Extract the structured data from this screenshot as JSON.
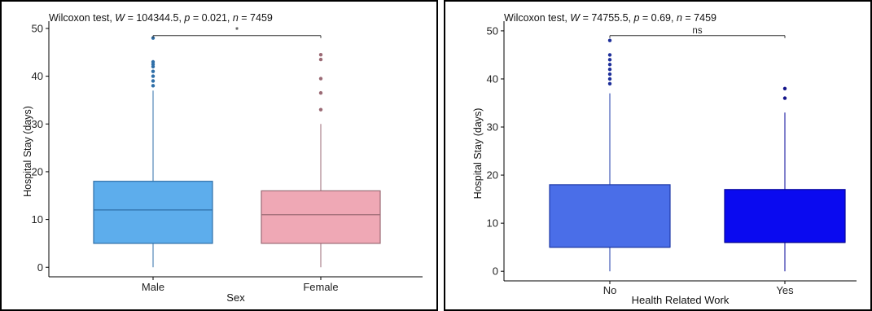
{
  "chart_data": [
    {
      "type": "boxplot",
      "subtitle": {
        "prefix": "Wilcoxon test, ",
        "W_label": "W",
        "W_value": " = 104344.5, ",
        "p_label": "p",
        "p_value": " = 0.021, ",
        "n_label": "n",
        "n_value": " = 7459"
      },
      "xlabel": "Sex",
      "ylabel": "Hospital Stay (days)",
      "ylim": [
        -2,
        50.5
      ],
      "yticks": [
        0,
        10,
        20,
        30,
        40,
        50
      ],
      "categories": [
        "Male",
        "Female"
      ],
      "boxes": [
        {
          "category": "Male",
          "q1": 5,
          "median": 12,
          "q3": 18,
          "whisker_low": 0,
          "whisker_high": 37,
          "outliers": [
            38,
            39,
            40,
            41,
            42,
            42.5,
            43,
            48
          ],
          "fill": "#5DADEC",
          "stroke": "#2F6FA8",
          "point_color": "#2F6FA8"
        },
        {
          "category": "Female",
          "q1": 5,
          "median": 11,
          "q3": 16,
          "whisker_low": 0,
          "whisker_high": 30,
          "outliers": [
            33,
            36.5,
            39.5,
            43.5,
            44.5
          ],
          "fill": "#EFA8B5",
          "stroke": "#9B6A75",
          "point_color": "#9B6A75"
        }
      ],
      "bracket": {
        "y": 48.5,
        "label": "*"
      }
    },
    {
      "type": "boxplot",
      "subtitle": {
        "prefix": "Wilcoxon test, ",
        "W_label": "W",
        "W_value": " = 74755.5, ",
        "p_label": "p",
        "p_value": " = 0.69, ",
        "n_label": "n",
        "n_value": " = 7459"
      },
      "xlabel": "Health Related Work",
      "ylabel": "Hospital Stay (days)",
      "ylim": [
        -2,
        51
      ],
      "yticks": [
        0,
        10,
        20,
        30,
        40,
        50
      ],
      "categories": [
        "No",
        "Yes"
      ],
      "boxes": [
        {
          "category": "No",
          "q1": 5,
          "median": 5,
          "q3": 18,
          "whisker_low": 0,
          "whisker_high": 37,
          "outliers": [
            39,
            40,
            41,
            42,
            43,
            44,
            45,
            48
          ],
          "fill": "#4A6EE8",
          "stroke": "#1E3AA8",
          "point_color": "#1E2F9A"
        },
        {
          "category": "Yes",
          "q1": 6,
          "median": 6,
          "q3": 17,
          "whisker_low": 0,
          "whisker_high": 33,
          "outliers": [
            36,
            38
          ],
          "fill": "#0A0AF0",
          "stroke": "#05059A",
          "point_color": "#14148A"
        }
      ],
      "bracket": {
        "y": 49,
        "label": "ns"
      }
    }
  ]
}
